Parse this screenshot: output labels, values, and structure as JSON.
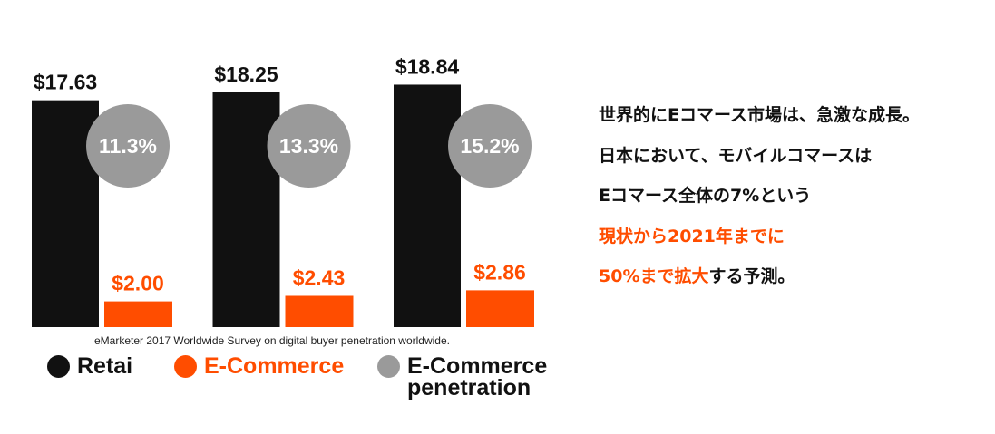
{
  "chart_data": {
    "type": "bar",
    "categories": [
      null,
      null,
      null
    ],
    "series": [
      {
        "name": "Retai",
        "color": "#111111",
        "values": [
          17.63,
          18.25,
          18.84
        ],
        "value_labels": [
          "$17.63",
          "$18.25",
          "$18.84"
        ]
      },
      {
        "name": "E-Commerce",
        "color": "#ff4d00",
        "values": [
          2,
          2.43,
          2.86
        ],
        "value_labels": [
          "$2.00",
          "$2.43",
          "$2.86"
        ]
      },
      {
        "name": "E-Commerce penetration",
        "color": "#9a9a9a",
        "mark": "circle",
        "values": [
          11.3,
          13.3,
          15.2
        ],
        "value_labels": [
          "11.3%",
          "13.3%",
          "15.2%"
        ]
      }
    ],
    "source": "eMarketer 2017 Worldwide Survey on digital buyer penetration worldwide."
  },
  "side_text": [
    [
      {
        "text": "世界的にEコマース市場は、急激な成長。",
        "color": "#111111"
      }
    ],
    [
      {
        "text": "日本において、モバイルコマースは",
        "color": "#111111"
      }
    ],
    [
      {
        "text": "Eコマース全体の7%という",
        "color": "#111111"
      }
    ],
    [
      {
        "text": "現状から2021年までに",
        "color": "#ff4d00"
      }
    ],
    [
      {
        "text": "50%まで拡大",
        "color": "#ff4d00"
      },
      {
        "text": "する予測。",
        "color": "#111111"
      }
    ]
  ]
}
